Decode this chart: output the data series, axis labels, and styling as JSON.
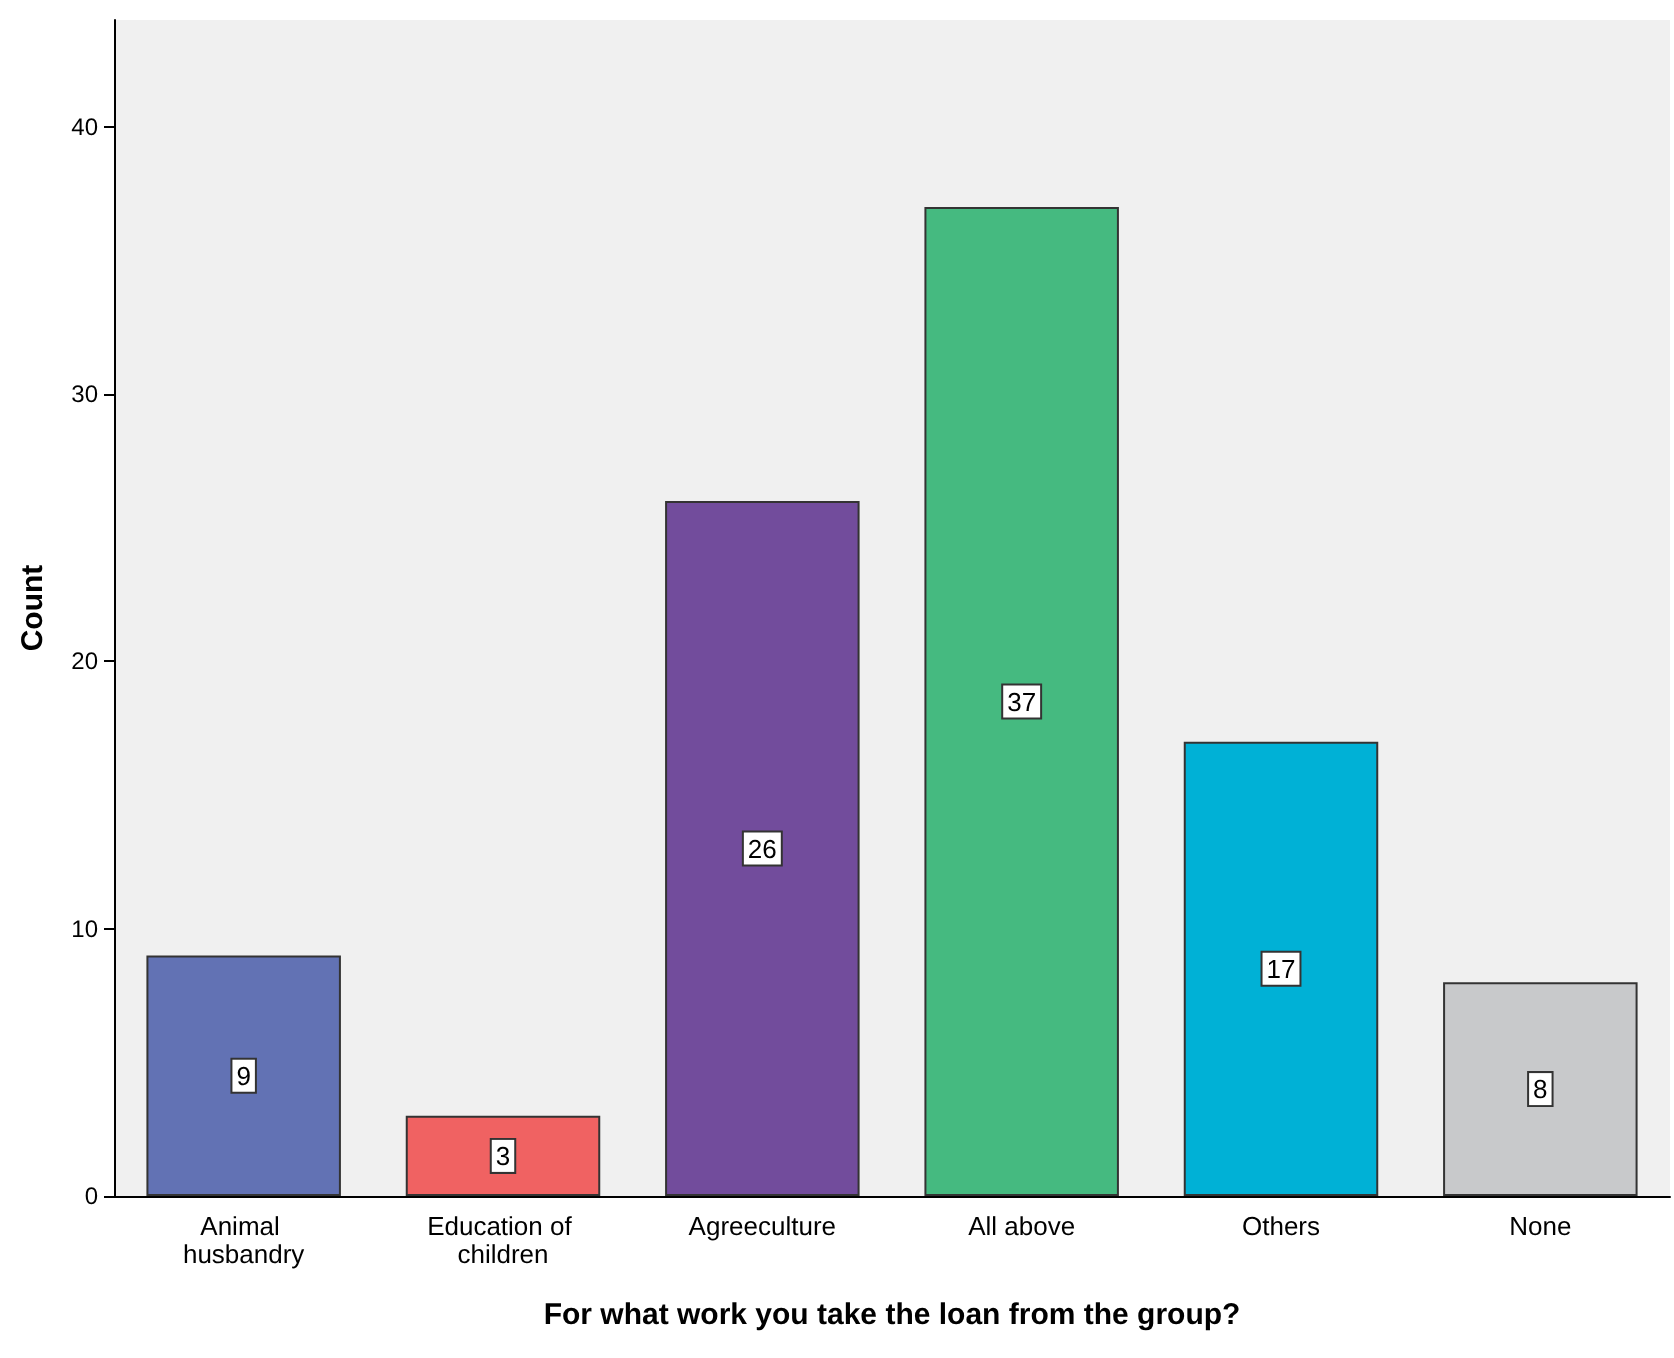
{
  "chart_data": {
    "type": "bar",
    "xlabel": "For what work you take the loan from the group?",
    "ylabel": "Count",
    "categories": [
      "Animal husbandry",
      "Education of children",
      "Agreeculture",
      "All above",
      "Others",
      "None"
    ],
    "values": [
      9,
      3,
      26,
      37,
      17,
      8
    ],
    "colors": [
      "#6272b4",
      "#f06262",
      "#724c9c",
      "#45ba80",
      "#00b1d6",
      "#c8c9cb"
    ],
    "ylim": [
      0,
      44
    ],
    "yticks": [
      0,
      10,
      20,
      30,
      40
    ],
    "grid": false,
    "data_labels": true
  }
}
